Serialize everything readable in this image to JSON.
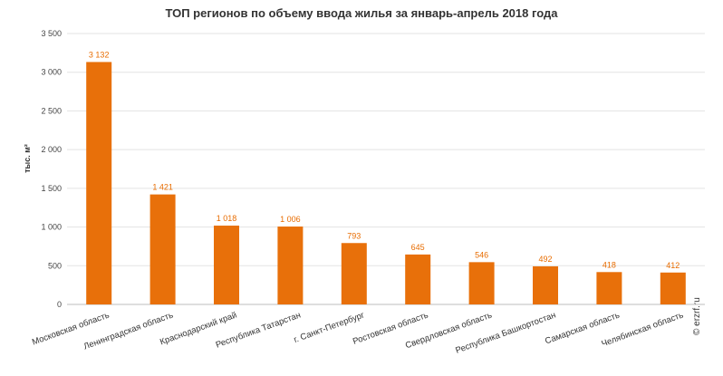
{
  "chart_data": {
    "type": "bar",
    "title": "ТОП регионов по объему ввода жилья за январь-апрель 2018 года",
    "ylabel": "тыс. м²",
    "xlabel": "",
    "ylim": [
      0,
      3500
    ],
    "yticks": [
      0,
      500,
      1000,
      1500,
      2000,
      2500,
      3000,
      3500
    ],
    "ytick_labels": [
      "0",
      "500",
      "1 000",
      "1 500",
      "2 000",
      "2 500",
      "3 000",
      "3 500"
    ],
    "categories": [
      "Московская область",
      "Ленинградская область",
      "Краснодарский край",
      "Республика Татарстан",
      "г. Санкт-Петербург",
      "Ростовская область",
      "Свердловская область",
      "Республика Башкортостан",
      "Самарская область",
      "Челябинская область"
    ],
    "values": [
      3132,
      1421,
      1018,
      1006,
      793,
      645,
      546,
      492,
      418,
      412
    ],
    "value_labels": [
      "3 132",
      "1 421",
      "1 018",
      "1 006",
      "793",
      "645",
      "546",
      "492",
      "418",
      "412"
    ],
    "grid": true,
    "bar_color": "#e8700a",
    "label_color": "#e86c00"
  },
  "watermark": "© erzrf.ru"
}
